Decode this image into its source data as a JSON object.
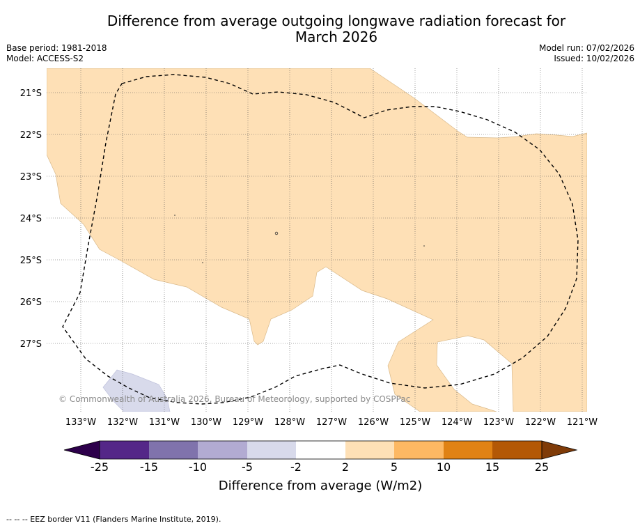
{
  "title_line1": "Difference from average outgoing longwave radiation forecast for",
  "title_line2": "March 2026",
  "base_period": "Base period: 1981-2018",
  "model": "Model: ACCESS-S2",
  "model_run": "Model run: 07/02/2026",
  "issued": "Issued: 10/02/2026",
  "lon_labels": [
    "133°W",
    "132°W",
    "131°W",
    "130°W",
    "129°W",
    "128°W",
    "127°W",
    "126°W",
    "125°W",
    "124°W",
    "123°W",
    "122°W",
    "121°W"
  ],
  "lat_labels": [
    "21°S",
    "22°S",
    "23°S",
    "24°S",
    "25°S",
    "26°S",
    "27°S"
  ],
  "copyright": "© Commonwealth of Australia 2026, Bureau of Meteorology, supported by COSPPac",
  "colorbar": {
    "ticks": [
      "-25",
      "-15",
      "-10",
      "-5",
      "-2",
      "2",
      "5",
      "10",
      "15",
      "25"
    ],
    "colors": [
      "#2d004b",
      "#542788",
      "#8073ac",
      "#b2abd2",
      "#d8daeb",
      "#ffffff",
      "#fee0b6",
      "#fdb863",
      "#e08214",
      "#b35806",
      "#7f3b08"
    ],
    "label": "Difference from average (W/m2)"
  },
  "footnote": "--  --  -- EEZ border V11 (Flanders Marine Institute, 2019)."
}
